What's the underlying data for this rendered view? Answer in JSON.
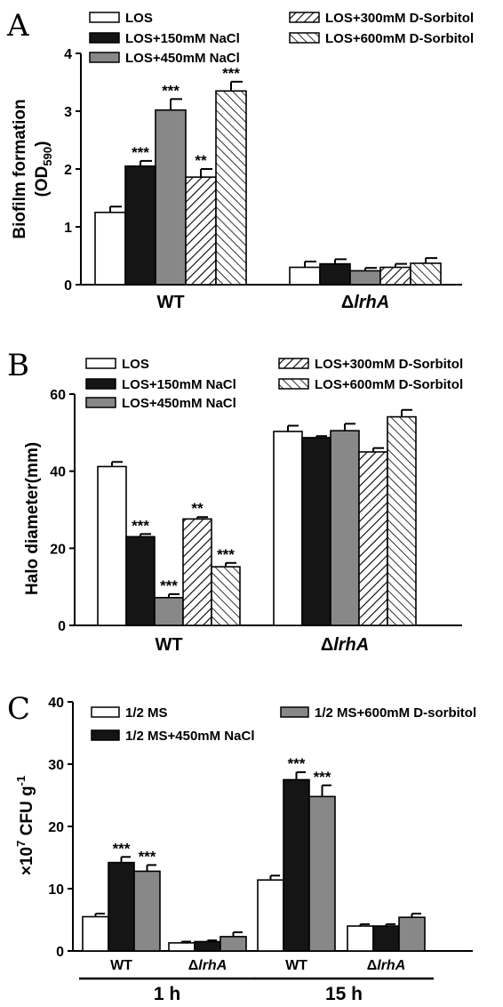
{
  "chart_data": [
    {
      "type": "bar",
      "panel": "A",
      "ylabel": "Biofilm formation (OD590)",
      "ylabel_main": "Biofilm formation",
      "ylabel_sub_prefix": "(OD",
      "ylabel_sub_sub": "590",
      "ylabel_sub_suffix": ")",
      "ylim": [
        0,
        4
      ],
      "yticks": [
        0,
        1,
        2,
        3,
        4
      ],
      "categories": [
        "WT",
        "ΔlrhA"
      ],
      "series": [
        {
          "name": "LOS",
          "values": [
            1.25,
            0.3
          ],
          "errors": [
            0.1,
            0.1
          ],
          "sig": [
            "",
            ""
          ],
          "fill": "white"
        },
        {
          "name": "LOS+150mM NaCl",
          "values": [
            2.05,
            0.36
          ],
          "errors": [
            0.09,
            0.08
          ],
          "sig": [
            "***",
            ""
          ],
          "fill": "black"
        },
        {
          "name": "LOS+450mM NaCl",
          "values": [
            3.02,
            0.24
          ],
          "errors": [
            0.19,
            0.05
          ],
          "sig": [
            "***",
            ""
          ],
          "fill": "gray"
        },
        {
          "name": "LOS+300mM D-Sorbitol",
          "values": [
            1.86,
            0.3
          ],
          "errors": [
            0.14,
            0.06
          ],
          "sig": [
            "**",
            ""
          ],
          "fill": "hatch-right"
        },
        {
          "name": "LOS+600mM D-Sorbitol",
          "values": [
            3.35,
            0.37
          ],
          "errors": [
            0.16,
            0.09
          ],
          "sig": [
            "***",
            ""
          ],
          "fill": "hatch-left"
        }
      ]
    },
    {
      "type": "bar",
      "panel": "B",
      "ylabel": "Halo diameter(mm)",
      "ylim": [
        0,
        60
      ],
      "yticks": [
        0,
        20,
        40,
        60
      ],
      "categories": [
        "WT",
        "ΔlrhA"
      ],
      "series": [
        {
          "name": "LOS",
          "values": [
            41.2,
            50.3
          ],
          "errors": [
            1.2,
            1.5
          ],
          "sig": [
            "",
            ""
          ],
          "fill": "white"
        },
        {
          "name": "LOS+150mM NaCl",
          "values": [
            23.0,
            48.7
          ],
          "errors": [
            0.7,
            0.4
          ],
          "sig": [
            "***",
            ""
          ],
          "fill": "black"
        },
        {
          "name": "LOS+450mM NaCl",
          "values": [
            7.2,
            50.5
          ],
          "errors": [
            0.9,
            1.8
          ],
          "sig": [
            "***",
            ""
          ],
          "fill": "gray"
        },
        {
          "name": "LOS+300mM D-Sorbitol",
          "values": [
            27.6,
            45.0
          ],
          "errors": [
            0.5,
            1.0
          ],
          "sig": [
            "**",
            ""
          ],
          "fill": "hatch-right"
        },
        {
          "name": "LOS+600mM D-Sorbitol",
          "values": [
            15.2,
            54.1
          ],
          "errors": [
            1.0,
            1.8
          ],
          "sig": [
            "***",
            ""
          ],
          "fill": "hatch-left"
        }
      ]
    },
    {
      "type": "bar",
      "panel": "C",
      "ylabel": "×10^7 CFU g^-1",
      "ylabel_prefix": "×10",
      "ylabel_exp1": "7",
      "ylabel_mid": " CFU g",
      "ylabel_exp2": "-1",
      "ylim": [
        0,
        40
      ],
      "yticks": [
        0,
        10,
        20,
        30,
        40
      ],
      "categories": [
        "WT",
        "ΔlrhA",
        "WT",
        "ΔlrhA"
      ],
      "time_groups": [
        "1 h",
        "15 h"
      ],
      "series": [
        {
          "name": "1/2 MS",
          "values": [
            5.5,
            1.3,
            11.4,
            4.0
          ],
          "errors": [
            0.5,
            0.2,
            0.7,
            0.3
          ],
          "sig": [
            "",
            "",
            "",
            ""
          ],
          "fill": "white"
        },
        {
          "name": "1/2 MS+450mM NaCl",
          "values": [
            14.2,
            1.5,
            27.5,
            4.0
          ],
          "errors": [
            0.9,
            0.2,
            1.2,
            0.3
          ],
          "sig": [
            "***",
            "",
            "***",
            ""
          ],
          "fill": "black"
        },
        {
          "name": "1/2 MS+600mM D-sorbitol",
          "values": [
            12.8,
            2.3,
            24.8,
            5.4
          ],
          "errors": [
            1.0,
            0.7,
            1.8,
            0.6
          ],
          "sig": [
            "***",
            "",
            "***",
            ""
          ],
          "fill": "gray"
        }
      ]
    }
  ],
  "panel_letters": [
    "A",
    "B",
    "C"
  ]
}
